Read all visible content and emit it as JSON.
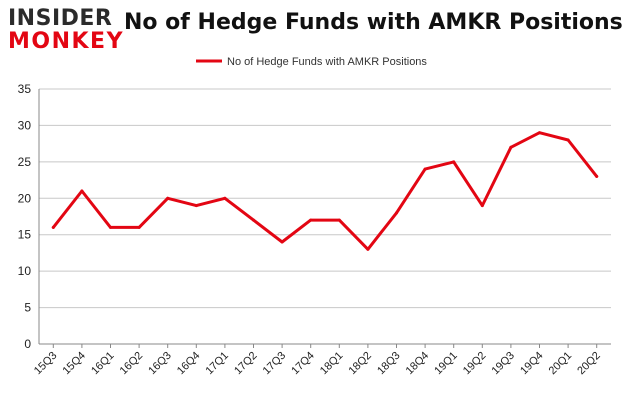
{
  "brand": {
    "line1": "INSIDER",
    "line2": "MONKEY",
    "accent": "#e30613"
  },
  "chart_data": {
    "type": "line",
    "title": "No of Hedge Funds with AMKR Positions",
    "categories": [
      "15Q3",
      "15Q4",
      "16Q1",
      "16Q2",
      "16Q3",
      "16Q4",
      "17Q1",
      "17Q2",
      "17Q3",
      "17Q4",
      "18Q1",
      "18Q2",
      "18Q3",
      "18Q4",
      "19Q1",
      "19Q2",
      "19Q3",
      "19Q4",
      "20Q1",
      "20Q2"
    ],
    "series": [
      {
        "name": "No of Hedge Funds with AMKR Positions",
        "color": "#e30613",
        "values": [
          16,
          21,
          16,
          16,
          20,
          19,
          20,
          17,
          14,
          17,
          17,
          13,
          18,
          24,
          25,
          19,
          27,
          29,
          28,
          23
        ]
      }
    ],
    "yticks": [
      0,
      5,
      10,
      15,
      20,
      25,
      30,
      35
    ],
    "ylim": [
      0,
      35
    ],
    "grid": true,
    "legend": "top-center"
  }
}
